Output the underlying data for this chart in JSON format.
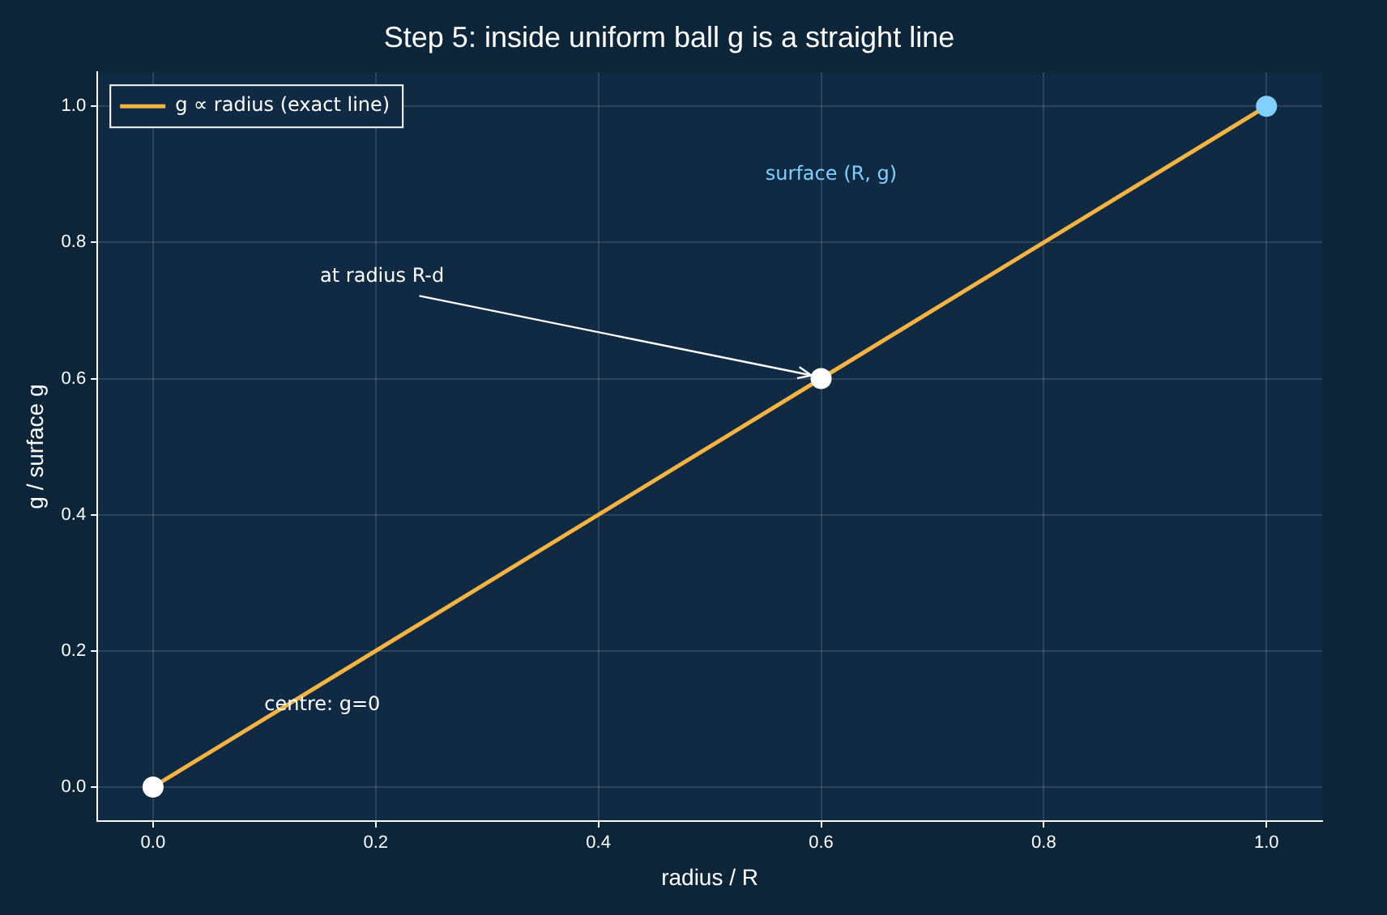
{
  "chart_data": {
    "type": "line",
    "title": "Step 5: inside uniform ball g is a straight line",
    "xlabel": "radius / R",
    "ylabel": "g / surface g",
    "x": [
      0,
      1
    ],
    "series": [
      {
        "name": "g ∝ radius (exact line)",
        "color": "#f5b342",
        "values": [
          0,
          1
        ],
        "marker": "none"
      },
      {
        "type": "scatter",
        "color": "#ffffff",
        "x": [
          0,
          0.6
        ],
        "values": [
          0,
          0.6
        ],
        "marker": "circle"
      },
      {
        "type": "scatter",
        "color": "#7fd0ff",
        "x": [
          1
        ],
        "values": [
          1
        ],
        "marker": "circle"
      }
    ],
    "annotations": [
      "surface (R, g)",
      {
        "text": "at radius R-d",
        "x": 0.6,
        "y": 0.6
      },
      "centre: g=0"
    ],
    "xlim": [
      -0.05,
      1.05
    ],
    "ylim": [
      -0.05,
      1.05
    ],
    "xticks": [
      {
        "value": 0,
        "label": "0.0"
      },
      0.2,
      0.4,
      0.6,
      0.8,
      {
        "value": 1,
        "label": "1.0"
      }
    ],
    "yticks": [
      {
        "value": 0,
        "label": "0.0"
      },
      0.2,
      0.4,
      0.6,
      0.8,
      {
        "value": 1,
        "label": "1.0"
      }
    ],
    "grid": true,
    "legend": "top left"
  }
}
